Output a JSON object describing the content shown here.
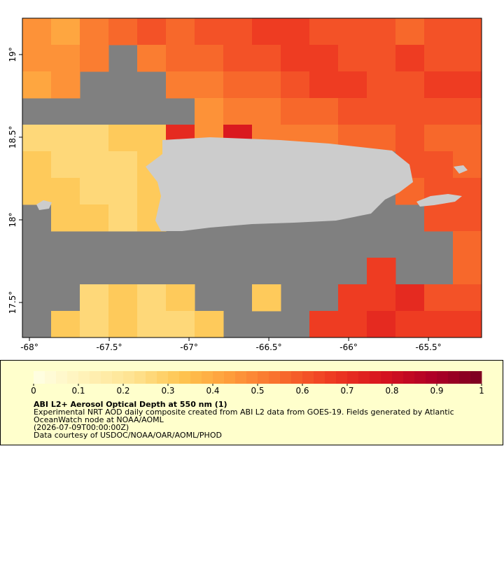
{
  "map": {
    "xaxis": {
      "lim": [
        -68.044,
        -65.167
      ],
      "ticks": [
        {
          "value": -68,
          "label": "-68°"
        },
        {
          "value": -67.5,
          "label": "-67.5°"
        },
        {
          "value": -67,
          "label": "-67°"
        },
        {
          "value": -66.5,
          "label": "-66.5°"
        },
        {
          "value": -66,
          "label": "-66°"
        },
        {
          "value": -65.5,
          "label": "-65.5°"
        }
      ]
    },
    "yaxis": {
      "lim": [
        17.288,
        19.22
      ],
      "ticks": [
        {
          "value": 17.5,
          "label": "17.5°"
        },
        {
          "value": 18,
          "label": "18°"
        },
        {
          "value": 18.5,
          "label": "18.5°"
        },
        {
          "value": 19,
          "label": "19°"
        }
      ]
    },
    "grid": {
      "rows": [
        [
          0.45,
          0.4,
          0.5,
          0.55,
          0.6,
          0.55,
          0.6,
          0.6,
          0.65,
          0.65,
          0.6,
          0.6,
          0.6,
          0.55,
          0.6,
          0.6
        ],
        [
          0.45,
          0.45,
          0.5,
          null,
          0.5,
          0.55,
          0.55,
          0.6,
          0.6,
          0.65,
          0.65,
          0.6,
          0.6,
          0.65,
          0.6,
          0.6
        ],
        [
          0.4,
          0.45,
          null,
          null,
          null,
          0.5,
          0.5,
          0.55,
          0.55,
          0.6,
          0.65,
          0.65,
          0.6,
          0.6,
          0.65,
          0.65
        ],
        [
          null,
          null,
          null,
          null,
          null,
          null,
          0.45,
          0.5,
          0.5,
          0.55,
          0.55,
          0.6,
          0.6,
          0.6,
          0.6,
          0.6
        ],
        [
          0.25,
          0.25,
          0.25,
          0.3,
          0.3,
          0.7,
          0.45,
          0.75,
          0.5,
          0.5,
          0.5,
          0.55,
          0.55,
          0.6,
          0.55,
          0.55
        ],
        [
          0.3,
          0.25,
          0.25,
          0.25,
          0.3,
          null,
          null,
          null,
          null,
          null,
          null,
          null,
          null,
          0.6,
          0.6,
          0.55
        ],
        [
          0.3,
          0.3,
          0.25,
          0.25,
          0.3,
          null,
          null,
          null,
          null,
          null,
          null,
          null,
          null,
          0.55,
          0.6,
          0.6
        ],
        [
          null,
          0.3,
          0.3,
          0.25,
          0.3,
          null,
          null,
          null,
          null,
          null,
          null,
          null,
          null,
          null,
          0.6,
          0.6
        ],
        [
          null,
          null,
          null,
          null,
          null,
          null,
          null,
          null,
          null,
          null,
          null,
          null,
          null,
          null,
          null,
          0.55
        ],
        [
          null,
          null,
          null,
          null,
          null,
          null,
          null,
          null,
          null,
          null,
          null,
          null,
          0.65,
          null,
          null,
          0.55
        ],
        [
          null,
          null,
          0.25,
          0.3,
          0.25,
          0.3,
          null,
          null,
          0.3,
          null,
          null,
          0.65,
          0.65,
          0.7,
          0.6,
          0.6
        ],
        [
          null,
          0.3,
          0.25,
          0.3,
          0.25,
          0.25,
          0.3,
          null,
          null,
          null,
          0.65,
          0.65,
          0.7,
          0.65,
          0.65,
          0.65
        ]
      ]
    },
    "no_data_color": "#808080",
    "land_color": "#cccccc"
  },
  "colorbar": {
    "lim": [
      0,
      1
    ],
    "ticks": [
      0,
      0.1,
      0.2,
      0.3,
      0.4,
      0.5,
      0.6,
      0.7,
      0.8,
      0.9,
      1
    ],
    "steps": 40,
    "palette": [
      "#ffffe5",
      "#fff2b8",
      "#fee391",
      "#fec44f",
      "#fe9a3a",
      "#f86b2c",
      "#ee3a22",
      "#d7141e",
      "#b00026",
      "#7a0020"
    ]
  },
  "legend": {
    "title": "ABI L2+ Aerosol Optical Depth at 550 nm (1)",
    "lines": [
      "Experimental NRT AOD daily composite created from ABI L2 data from GOES-19. Fields generated by Atlantic",
      "OceanWatch node at NOAA/AOML",
      "(2026-07-09T00:00:00Z)",
      "Data courtesy of USDOC/NOAA/OAR/AOML/PHOD"
    ]
  }
}
